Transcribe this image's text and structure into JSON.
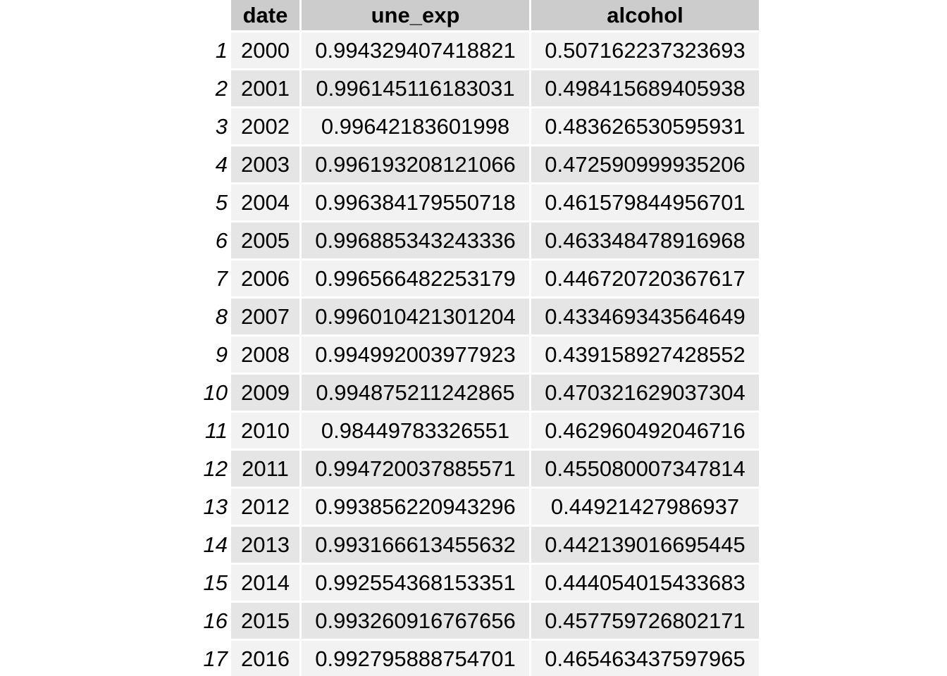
{
  "table": {
    "columns": [
      "date",
      "une_exp",
      "alcohol"
    ],
    "rows": [
      {
        "index": "1",
        "date": "2000",
        "une_exp": "0.994329407418821",
        "alcohol": "0.507162237323693"
      },
      {
        "index": "2",
        "date": "2001",
        "une_exp": "0.996145116183031",
        "alcohol": "0.498415689405938"
      },
      {
        "index": "3",
        "date": "2002",
        "une_exp": "0.99642183601998",
        "alcohol": "0.483626530595931"
      },
      {
        "index": "4",
        "date": "2003",
        "une_exp": "0.996193208121066",
        "alcohol": "0.472590999935206"
      },
      {
        "index": "5",
        "date": "2004",
        "une_exp": "0.996384179550718",
        "alcohol": "0.461579844956701"
      },
      {
        "index": "6",
        "date": "2005",
        "une_exp": "0.996885343243336",
        "alcohol": "0.463348478916968"
      },
      {
        "index": "7",
        "date": "2006",
        "une_exp": "0.996566482253179",
        "alcohol": "0.446720720367617"
      },
      {
        "index": "8",
        "date": "2007",
        "une_exp": "0.996010421301204",
        "alcohol": "0.433469343564649"
      },
      {
        "index": "9",
        "date": "2008",
        "une_exp": "0.994992003977923",
        "alcohol": "0.439158927428552"
      },
      {
        "index": "10",
        "date": "2009",
        "une_exp": "0.994875211242865",
        "alcohol": "0.470321629037304"
      },
      {
        "index": "11",
        "date": "2010",
        "une_exp": "0.98449783326551",
        "alcohol": "0.462960492046716"
      },
      {
        "index": "12",
        "date": "2011",
        "une_exp": "0.994720037885571",
        "alcohol": "0.455080007347814"
      },
      {
        "index": "13",
        "date": "2012",
        "une_exp": "0.993856220943296",
        "alcohol": "0.44921427986937"
      },
      {
        "index": "14",
        "date": "2013",
        "une_exp": "0.993166613455632",
        "alcohol": "0.442139016695445"
      },
      {
        "index": "15",
        "date": "2014",
        "une_exp": "0.992554368153351",
        "alcohol": "0.444054015433683"
      },
      {
        "index": "16",
        "date": "2015",
        "une_exp": "0.993260916767656",
        "alcohol": "0.457759726802171"
      },
      {
        "index": "17",
        "date": "2016",
        "une_exp": "0.992795888754701",
        "alcohol": "0.465463437597965"
      }
    ]
  }
}
